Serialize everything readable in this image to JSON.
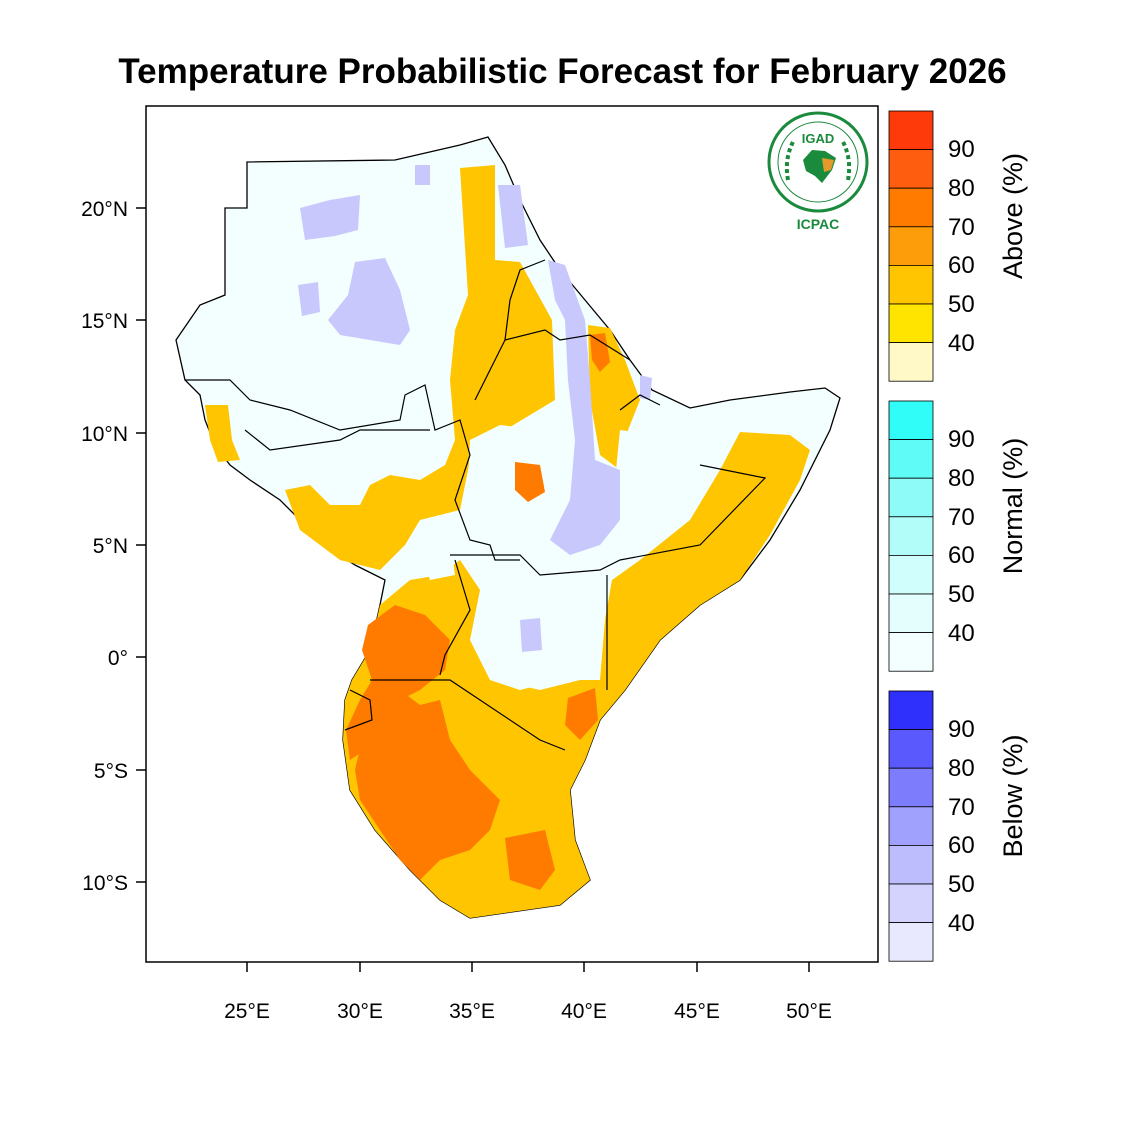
{
  "title": "Temperature Probabilistic Forecast for February 2026",
  "logo": {
    "top_text": "IGAD",
    "bottom_text": "ICPAC",
    "color": "#1a8a3c",
    "accent": "#e39a2a"
  },
  "axes": {
    "lat_ticks": [
      "20°N",
      "15°N",
      "10°N",
      "5°N",
      "0°",
      "5°S",
      "10°S"
    ],
    "lon_ticks": [
      "25°E",
      "30°E",
      "35°E",
      "40°E",
      "45°E",
      "50°E"
    ]
  },
  "colorbars": [
    {
      "title": "Above (%)",
      "labels": [
        "90",
        "80",
        "70",
        "60",
        "50",
        "40"
      ],
      "colors": [
        "#fe3a0a",
        "#fe5d10",
        "#fe7b00",
        "#fe9d0a",
        "#ffc500",
        "#ffe400",
        "#fff9c8"
      ]
    },
    {
      "title": "Normal (%)",
      "labels": [
        "90",
        "80",
        "70",
        "60",
        "50",
        "40"
      ],
      "colors": [
        "#30fcf8",
        "#5ffbf6",
        "#8efbf8",
        "#b2fcfa",
        "#cffefc",
        "#e4fefd",
        "#f2fffe"
      ]
    },
    {
      "title": "Below (%)",
      "labels": [
        "90",
        "80",
        "70",
        "60",
        "50",
        "40"
      ],
      "colors": [
        "#3030fc",
        "#5959fd",
        "#7c7cfd",
        "#a0a0fd",
        "#bdbdfd",
        "#d3d3fe",
        "#e8e8fe"
      ]
    }
  ],
  "palette": {
    "above_40": "#ffe400",
    "above_50": "#ffc500",
    "above_60": "#fe9d0a",
    "above_70": "#fe7b00",
    "above_80": "#fe5d10",
    "normal_40": "#f2fffe",
    "below_40": "#d3d3fe",
    "below_50": "#bdbdfd"
  }
}
